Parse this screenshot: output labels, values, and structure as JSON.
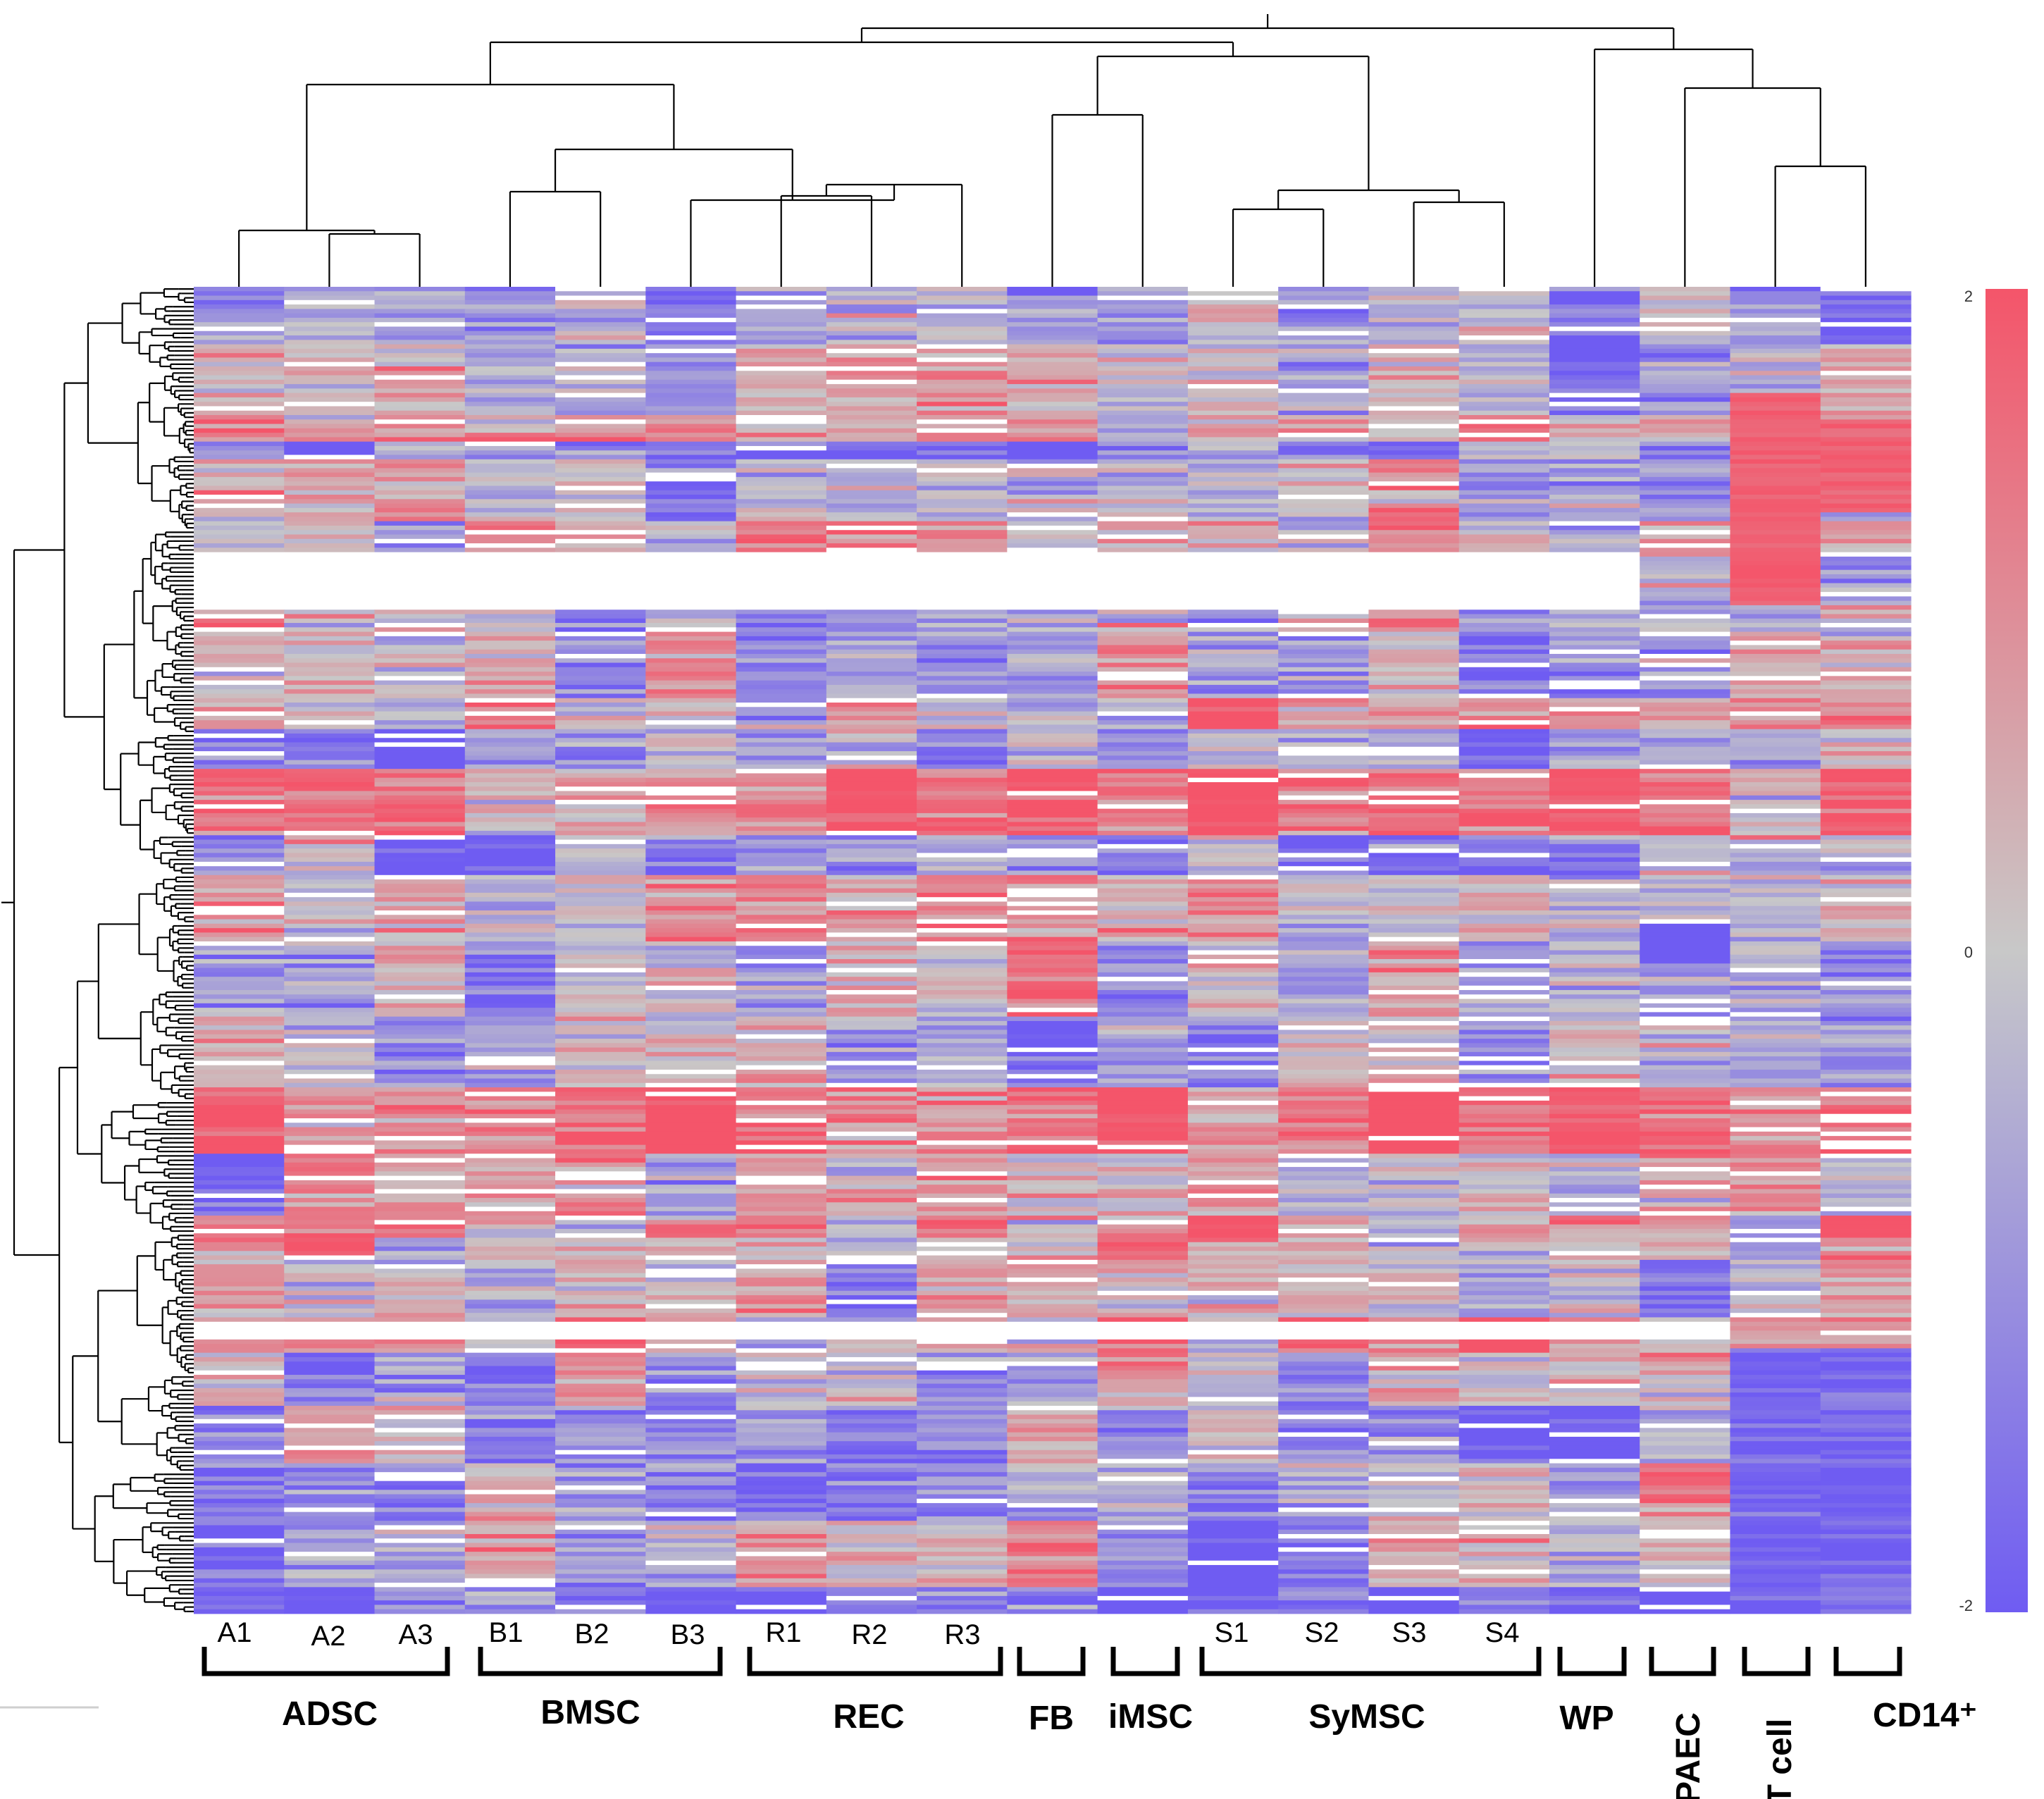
{
  "chart_data": {
    "type": "heatmap",
    "title": "",
    "samples": [
      "A1",
      "A2",
      "A3",
      "B1",
      "B2",
      "B3",
      "R1",
      "R2",
      "R3",
      "FB",
      "iMSC",
      "S1",
      "S2",
      "S3",
      "S4",
      "WP",
      "PAEC",
      "T cell",
      "CD14⁺"
    ],
    "sample_labels": [
      "A1",
      "A2",
      "A3",
      "B1",
      "B2",
      "B3",
      "R1",
      "R2",
      "R3",
      "S1",
      "S2",
      "S3",
      "S4"
    ],
    "groups": [
      {
        "name": "ADSC",
        "samples": [
          "A1",
          "A2",
          "A3"
        ]
      },
      {
        "name": "BMSC",
        "samples": [
          "B1",
          "B2",
          "B3"
        ]
      },
      {
        "name": "REC",
        "samples": [
          "R1",
          "R2",
          "R3"
        ]
      },
      {
        "name": "FB",
        "samples": [
          "FB"
        ]
      },
      {
        "name": "iMSC",
        "samples": [
          "iMSC"
        ]
      },
      {
        "name": "SyMSC",
        "samples": [
          "S1",
          "S2",
          "S3",
          "S4"
        ]
      },
      {
        "name": "WP",
        "samples": [
          "WP"
        ]
      },
      {
        "name": "PAEC",
        "samples": [
          "PAEC"
        ]
      },
      {
        "name": "T cell",
        "samples": [
          "T cell"
        ]
      },
      {
        "name": "CD14⁺",
        "samples": [
          "CD14⁺"
        ]
      }
    ],
    "color_scale": {
      "min": -2,
      "mid": 0,
      "max": 2,
      "tick_labels": [
        "2",
        "0",
        "-2"
      ],
      "low_color": "#6f5cf2",
      "mid_color": "#c8c8c8",
      "high_color": "#f4556a",
      "missing_color": "#ffffff"
    },
    "column_dendrogram": true,
    "row_dendrogram": true,
    "gene_rows": "approximately 300 clustered genes (row z-scores, values approximated)"
  }
}
